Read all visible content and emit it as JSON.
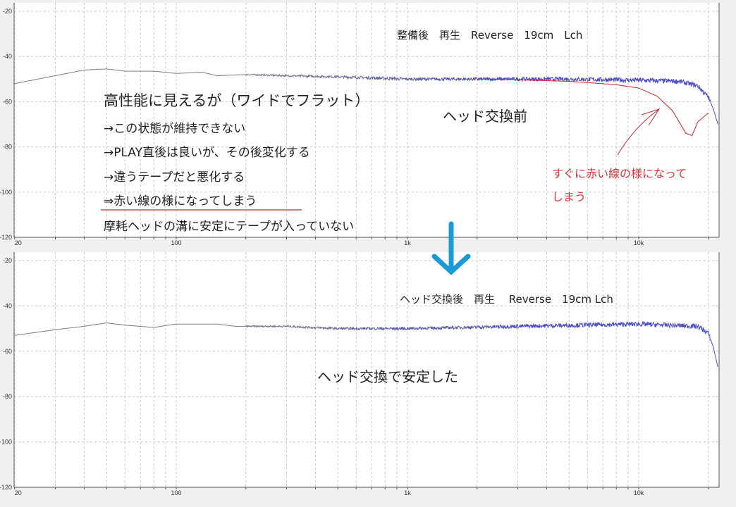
{
  "chart_data": [
    {
      "type": "line",
      "title": "整備後　再生　Reverse　19cm　Lch",
      "x_scale": "log",
      "xlim": [
        20,
        22000
      ],
      "ylim": [
        -120,
        -20
      ],
      "x_tick_labels": [
        "20",
        "100",
        "1k",
        "10k"
      ],
      "y_tick_labels": [
        "-20",
        "-40",
        "-60",
        "-80",
        "-100",
        "-120"
      ],
      "grid": true,
      "series": [
        {
          "color": "#4a4ac4",
          "x": [
            20,
            30,
            40,
            50,
            60,
            80,
            100,
            130,
            150,
            200,
            300,
            500,
            1000,
            2000,
            5000,
            10000,
            15000,
            18000,
            20000,
            21000,
            22000
          ],
          "y": [
            -52,
            -48.5,
            -46,
            -45.5,
            -46.5,
            -46.5,
            -47.5,
            -47,
            -48.5,
            -48,
            -48.5,
            -49,
            -50,
            -50,
            -50,
            -50.5,
            -51,
            -53,
            -58,
            -63,
            -70
          ]
        },
        {
          "color": "#c0282c",
          "x": [
            2000,
            3000,
            5000,
            8000,
            10000,
            12000,
            14000,
            16000,
            17000,
            18000,
            20000
          ],
          "y": [
            -50,
            -50.3,
            -51,
            -52.5,
            -54,
            -57.5,
            -64,
            -74,
            -75,
            -69,
            -65
          ]
        }
      ],
      "annotations": {
        "notes": [
          "高性能に見えるが（ワイドでフラット）",
          "→この状態が維持できない",
          "→PLAY直後は良いが、その後変化する",
          "→違うテープだと悪化する",
          "⇒赤い線の様になってしまう",
          "摩耗ヘッドの溝に安定にテープが入っていない"
        ],
        "label": "ヘッド交換前",
        "red_note": [
          "すぐに赤い線の様になって",
          "しまう"
        ]
      }
    },
    {
      "type": "line",
      "title": "ヘッド交換後　再生　 Reverse　19cm Lch",
      "x_scale": "log",
      "xlim": [
        20,
        22000
      ],
      "ylim": [
        -120,
        -20
      ],
      "x_tick_labels": [
        "20",
        "100",
        "1k",
        "10k"
      ],
      "y_tick_labels": [
        "-20",
        "-40",
        "-60",
        "-80",
        "-100",
        "-120"
      ],
      "grid": true,
      "series": [
        {
          "color": "#4a4ac4",
          "x": [
            20,
            30,
            40,
            50,
            60,
            80,
            100,
            150,
            180,
            200,
            300,
            500,
            1000,
            3000,
            10000,
            18000,
            20000,
            21000,
            22000
          ],
          "y": [
            -53,
            -50.5,
            -49,
            -47.5,
            -48.5,
            -49.5,
            -48,
            -48,
            -49,
            -49,
            -49,
            -50,
            -50,
            -49,
            -48,
            -49,
            -52,
            -58,
            -67
          ]
        }
      ],
      "annotations": {
        "label": "ヘッド交換で安定した"
      }
    }
  ],
  "arrow_color": "#1b9ad6"
}
